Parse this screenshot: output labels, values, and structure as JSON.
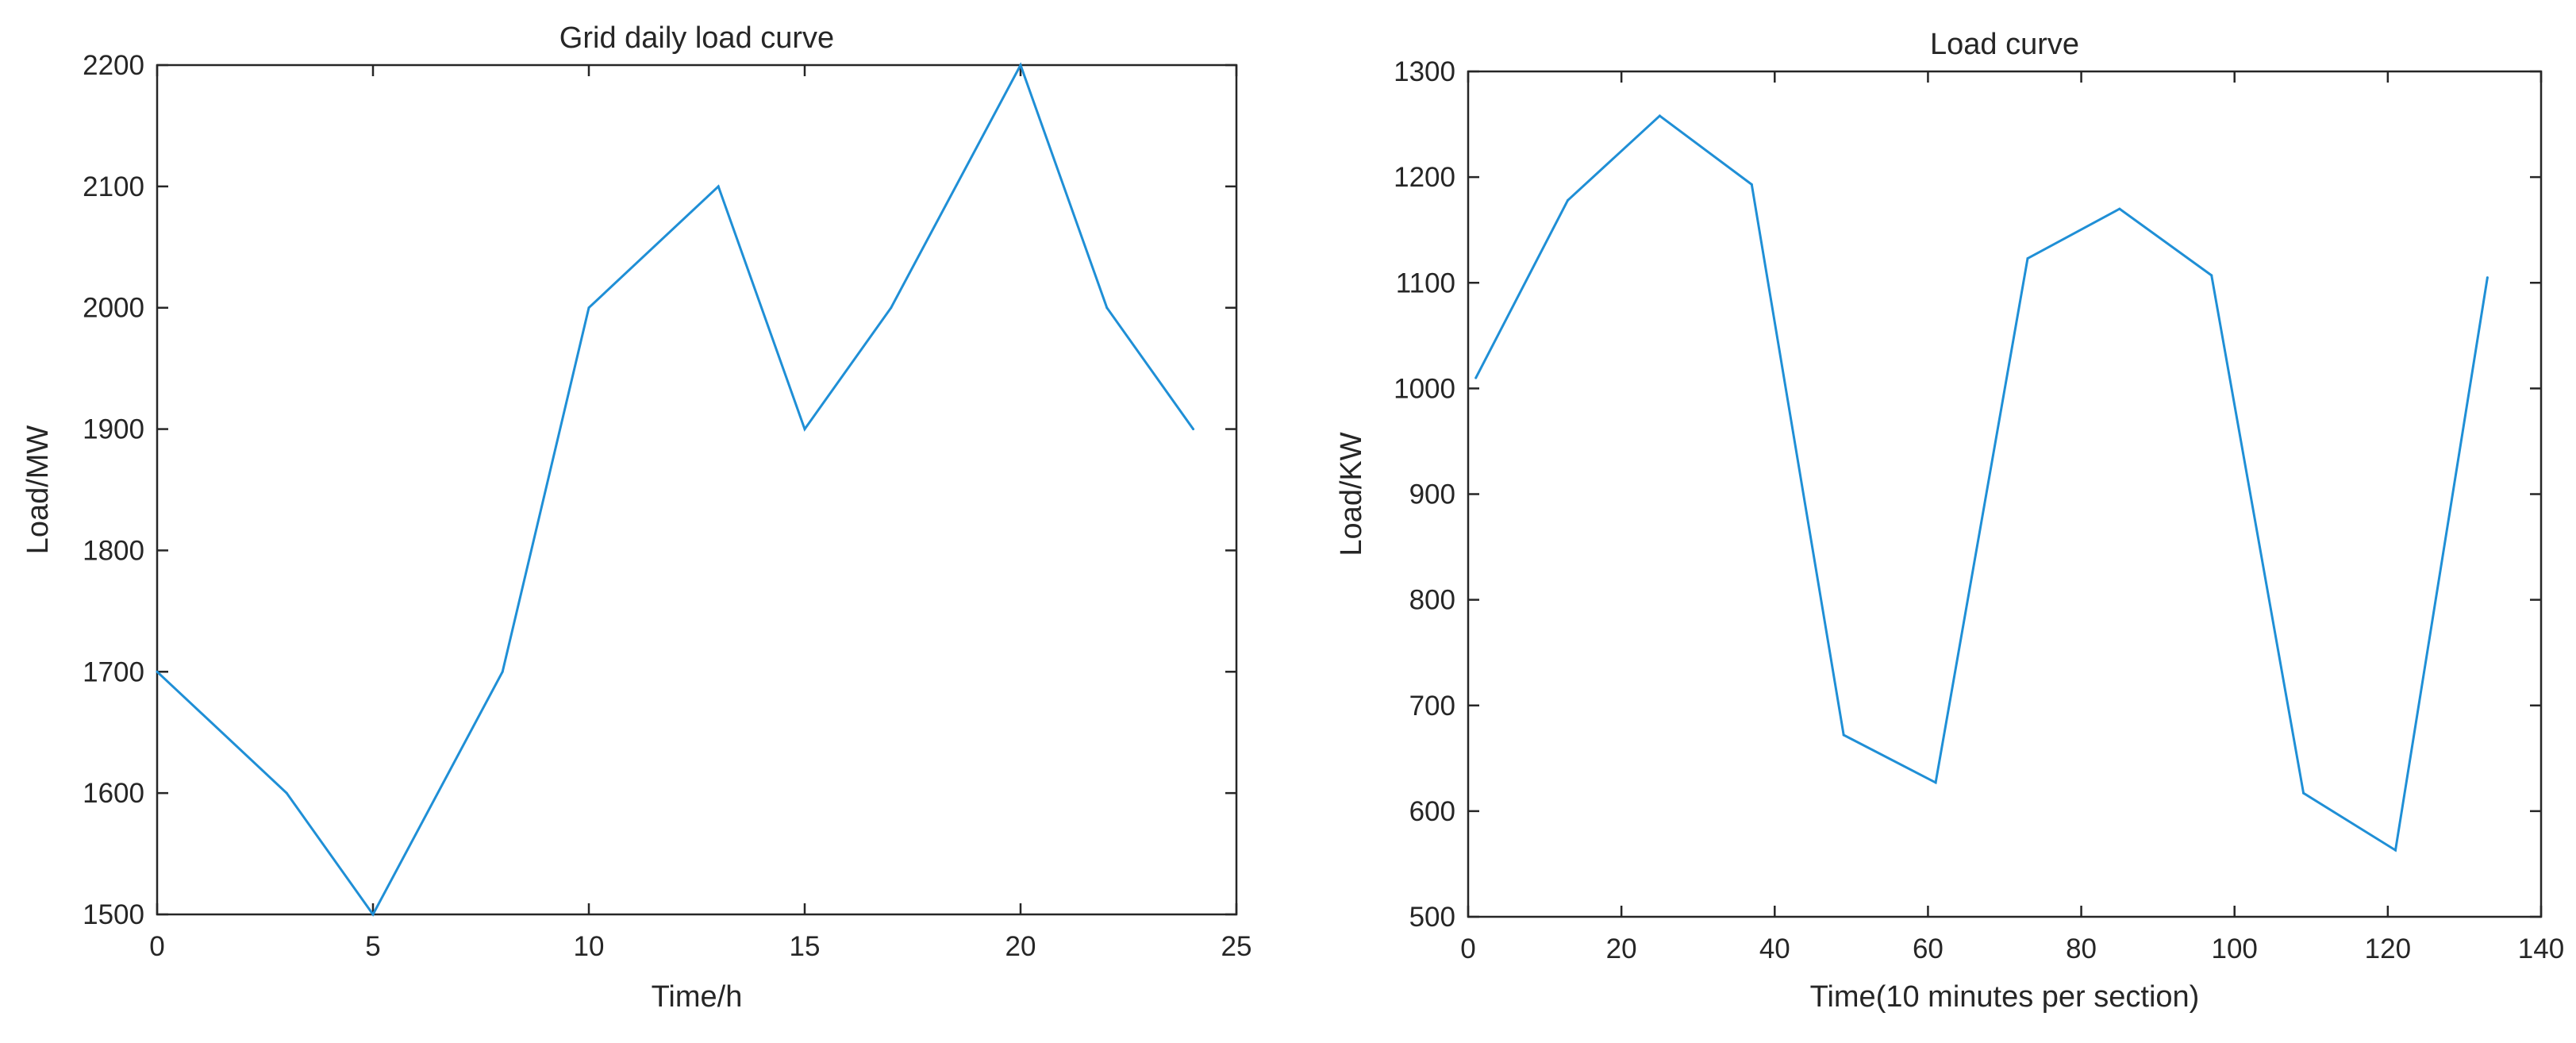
{
  "chart_data": [
    {
      "type": "line",
      "title": "Grid daily load curve",
      "xlabel": "Time/h",
      "ylabel": "Load/MW",
      "xlim": [
        0,
        25
      ],
      "ylim": [
        1500,
        2200
      ],
      "xticks": [
        0,
        5,
        10,
        15,
        20,
        25
      ],
      "yticks": [
        1500,
        1600,
        1700,
        1800,
        1900,
        2000,
        2100,
        2200
      ],
      "grid": false,
      "series": [
        {
          "color": "#1f8fd6",
          "x": [
            0,
            3,
            5,
            8,
            10,
            13,
            15,
            17,
            20,
            22,
            24
          ],
          "y": [
            1700,
            1600,
            1500,
            1700,
            2000,
            2100,
            1900,
            2000,
            2200,
            2000,
            1900
          ]
        }
      ]
    },
    {
      "type": "line",
      "title": "Load curve",
      "xlabel": "Time(10 minutes per section)",
      "ylabel": "Load/KW",
      "xlim": [
        0,
        140
      ],
      "ylim": [
        500,
        1300
      ],
      "xticks": [
        0,
        20,
        40,
        60,
        80,
        100,
        120,
        140
      ],
      "yticks": [
        500,
        600,
        700,
        800,
        900,
        1000,
        1100,
        1200,
        1300
      ],
      "grid": false,
      "series": [
        {
          "color": "#1f8fd6",
          "x": [
            1,
            13,
            25,
            37,
            49,
            61,
            73,
            85,
            97,
            109,
            121,
            133
          ],
          "y": [
            1010,
            1178,
            1258,
            1193,
            672,
            627,
            1123,
            1170,
            1107,
            617,
            563,
            1105
          ]
        }
      ]
    }
  ]
}
